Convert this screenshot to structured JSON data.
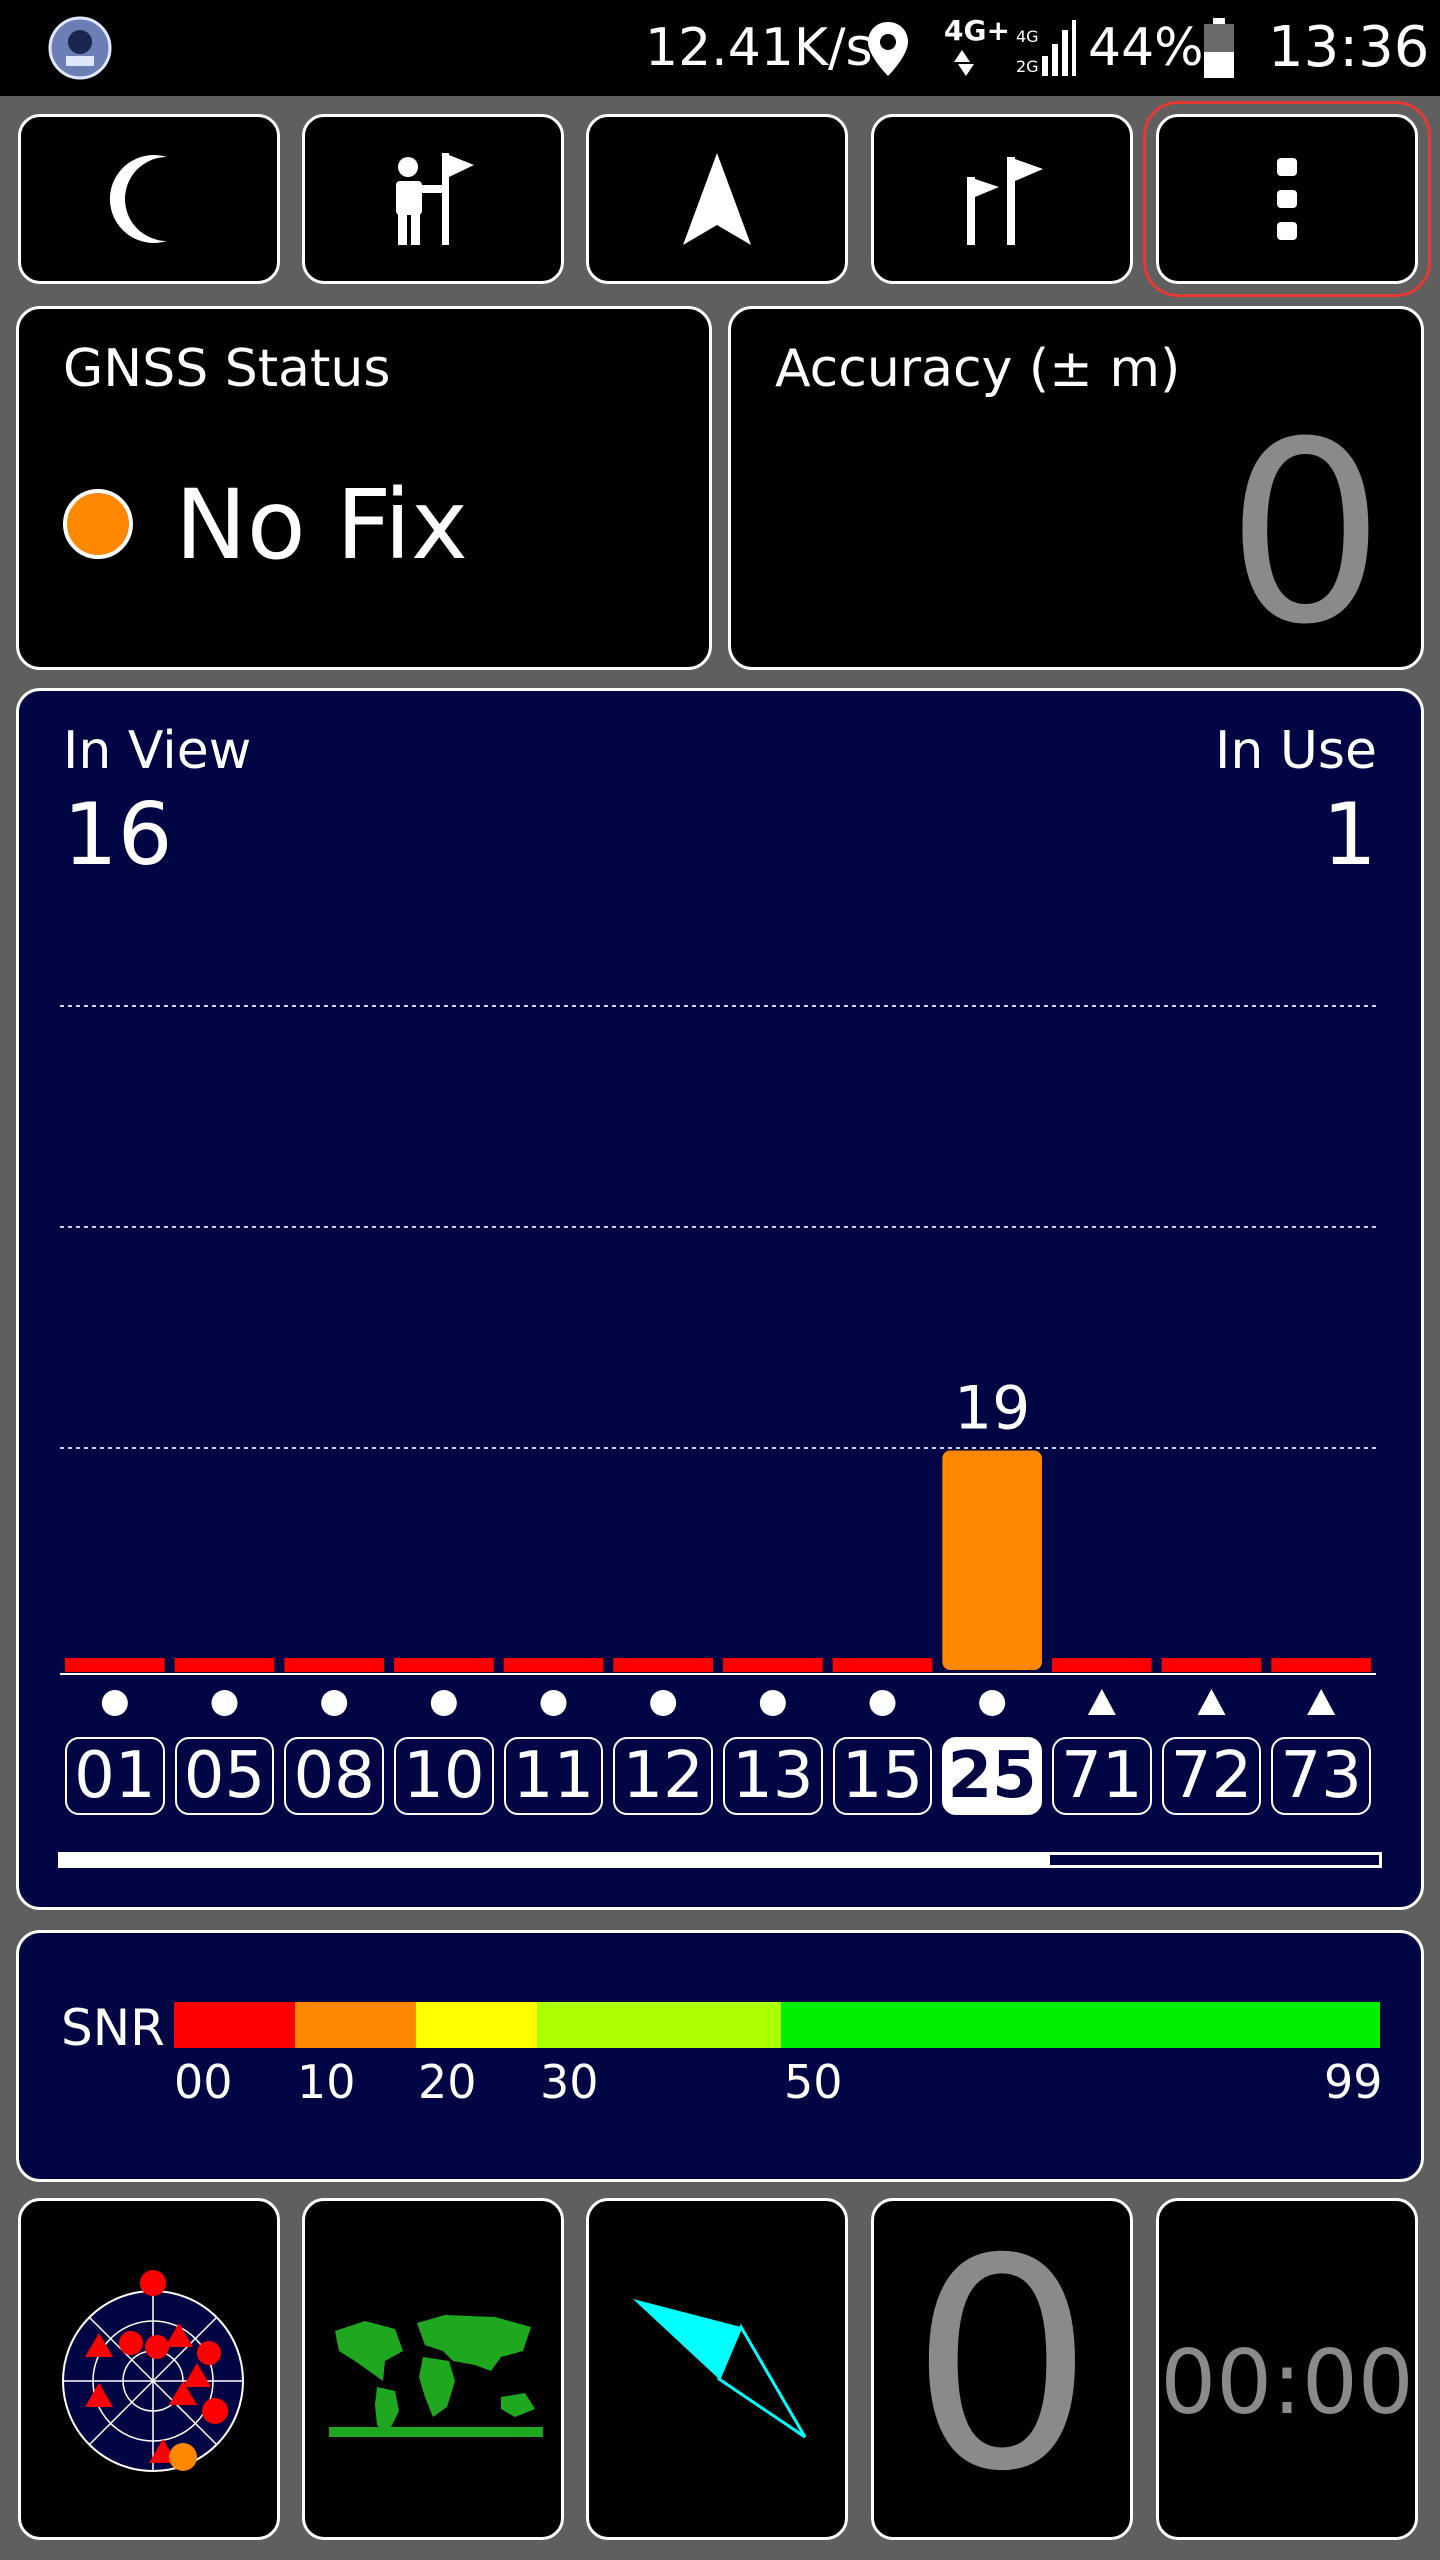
{
  "status_bar": {
    "network_speed": "12.41K/s",
    "network_type": "4G+",
    "battery": "44%",
    "time": "13:36"
  },
  "toolbar": {
    "buttons": [
      {
        "icon": "moon-icon"
      },
      {
        "icon": "person-flag-icon"
      },
      {
        "icon": "navigation-arrow-icon"
      },
      {
        "icon": "two-flags-icon"
      },
      {
        "icon": "more-vertical-icon"
      }
    ]
  },
  "gnss": {
    "title": "GNSS Status",
    "status": "No Fix",
    "status_color": "#ff8800"
  },
  "accuracy": {
    "title": "Accuracy (± m)",
    "value": "0"
  },
  "satellites": {
    "in_view_label": "In View",
    "in_view": "16",
    "in_use_label": "In Use",
    "in_use": "1",
    "chart_data": {
      "type": "bar",
      "categories": [
        "01",
        "05",
        "08",
        "10",
        "11",
        "12",
        "13",
        "15",
        "25",
        "71",
        "72",
        "73"
      ],
      "values": [
        0,
        0,
        0,
        0,
        0,
        0,
        0,
        0,
        19,
        0,
        0,
        0
      ],
      "bar_labels": [
        "",
        "",
        "",
        "",
        "",
        "",
        "",
        "",
        "19",
        "",
        "",
        ""
      ],
      "markers": [
        "circle",
        "circle",
        "circle",
        "circle",
        "circle",
        "circle",
        "circle",
        "circle",
        "circle",
        "triangle",
        "triangle",
        "triangle"
      ],
      "selected": "25",
      "ylim": [
        0,
        60
      ],
      "grid": true
    },
    "scroll_fraction": 0.75
  },
  "snr": {
    "label": "SNR",
    "ticks": [
      "00",
      "10",
      "20",
      "30",
      "50",
      "99"
    ],
    "colors": [
      "#ff0000",
      "#ff8800",
      "#ffff00",
      "#aaff00",
      "#00ee00"
    ]
  },
  "bottom": {
    "speed_value": "0",
    "timer": "00:00"
  },
  "colors": {
    "navy": "#020543",
    "bar_selected": "#ff8800",
    "bar_empty": "#ff0000"
  }
}
